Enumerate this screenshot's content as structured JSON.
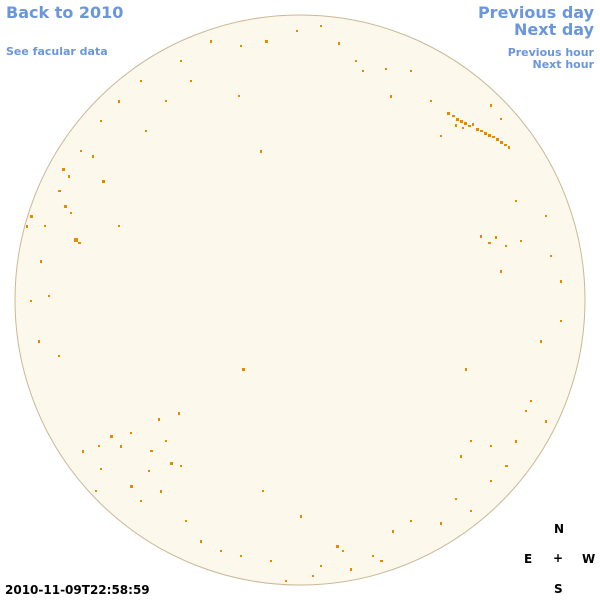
{
  "links": {
    "back": "Back to 2010",
    "previous_day": "Previous day",
    "next_day": "Next day",
    "facular": "See facular data",
    "previous_hour": "Previous hour",
    "next_hour": "Next hour"
  },
  "timestamp": "2010-11-09T22:58:59",
  "compass": {
    "north": "N",
    "east": "E",
    "center": "+",
    "west": "W",
    "south": "S"
  }
}
